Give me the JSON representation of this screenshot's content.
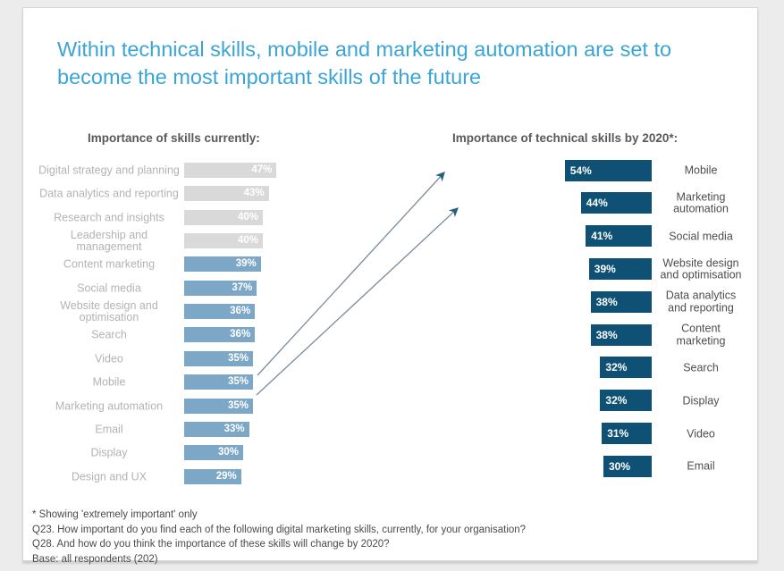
{
  "slide": {
    "title": "Within technical skills, mobile and marketing automation are set to become the most important skills of the future"
  },
  "charts": {
    "current": {
      "heading": "Importance of skills currently:",
      "rows": [
        {
          "label": "Digital strategy and planning",
          "value": 47,
          "variant": "gray"
        },
        {
          "label": "Data analytics and reporting",
          "value": 43,
          "variant": "gray"
        },
        {
          "label": "Research and insights",
          "value": 40,
          "variant": "gray"
        },
        {
          "label": "Leadership and management",
          "value": 40,
          "variant": "gray"
        },
        {
          "label": "Content marketing",
          "value": 39,
          "variant": "blue"
        },
        {
          "label": "Social media",
          "value": 37,
          "variant": "blue"
        },
        {
          "label": "Website design and optimisation",
          "value": 36,
          "variant": "blue"
        },
        {
          "label": "Search",
          "value": 36,
          "variant": "blue"
        },
        {
          "label": "Video",
          "value": 35,
          "variant": "blue"
        },
        {
          "label": "Mobile",
          "value": 35,
          "variant": "blue"
        },
        {
          "label": "Marketing automation",
          "value": 35,
          "variant": "blue"
        },
        {
          "label": "Email",
          "value": 33,
          "variant": "blue"
        },
        {
          "label": "Display",
          "value": 30,
          "variant": "blue"
        },
        {
          "label": "Design and UX",
          "value": 29,
          "variant": "blue"
        }
      ]
    },
    "future": {
      "heading": "Importance of technical skills by 2020*:",
      "rows": [
        {
          "label": "Mobile",
          "value": 54
        },
        {
          "label": "Marketing automation",
          "value": 44
        },
        {
          "label": "Social media",
          "value": 41
        },
        {
          "label": "Website design and optimisation",
          "value": 39
        },
        {
          "label": "Data analytics and reporting",
          "value": 38
        },
        {
          "label": "Content marketing",
          "value": 38
        },
        {
          "label": "Search",
          "value": 32
        },
        {
          "label": "Display",
          "value": 32
        },
        {
          "label": "Video",
          "value": 31
        },
        {
          "label": "Email",
          "value": 30
        }
      ]
    }
  },
  "footnotes": [
    "* Showing 'extremely important' only",
    "Q23. How important do you find each of the following digital marketing skills, currently, for your organisation?",
    "Q28. And how do you think the importance of these skills will change by 2020?",
    "Base: all respondents (202)"
  ],
  "colors": {
    "title_blue": "#3aa5d5",
    "bar_gray": "#d9d9d9",
    "bar_steel_blue": "#7da7c6",
    "bar_dark_blue": "#0e5174",
    "value_text": "#ffffff",
    "label_light_gray": "#b3b3b3",
    "label_dark_gray": "#4d4d4d",
    "heading_gray": "#595959",
    "arrow": "#7b8c9b",
    "background": "#ececec"
  },
  "chart_data": [
    {
      "type": "bar",
      "orientation": "horizontal",
      "title": "Importance of skills currently:",
      "categories": [
        "Digital strategy and planning",
        "Data analytics and reporting",
        "Research and insights",
        "Leadership and management",
        "Content marketing",
        "Social media",
        "Website design and optimisation",
        "Search",
        "Video",
        "Mobile",
        "Marketing automation",
        "Email",
        "Display",
        "Design and UX"
      ],
      "values": [
        47,
        43,
        40,
        40,
        39,
        37,
        36,
        36,
        35,
        35,
        35,
        33,
        30,
        29
      ],
      "unit": "%",
      "xlabel": "",
      "ylabel": "",
      "xlim": [
        0,
        60
      ],
      "grid": false,
      "legend": false,
      "notes": "Top four bars (non-technical skills) are gray; remaining bars steel blue; value labels in white inside right end of bars"
    },
    {
      "type": "bar",
      "orientation": "horizontal",
      "title": "Importance of technical skills by 2020*:",
      "categories": [
        "Mobile",
        "Marketing automation",
        "Social media",
        "Website design and optimisation",
        "Data analytics and reporting",
        "Content marketing",
        "Search",
        "Display",
        "Video",
        "Email"
      ],
      "values": [
        54,
        44,
        41,
        39,
        38,
        38,
        32,
        32,
        31,
        30
      ],
      "unit": "%",
      "xlabel": "",
      "ylabel": "",
      "xlim": [
        0,
        60
      ],
      "grid": false,
      "legend": false,
      "notes": "Bars right-aligned growing leftward, dark blue, value labels in white inside left end, category labels to the right; two arrows point from 'Mobile' and 'Marketing automation' bars in the current chart toward the top of this chart"
    }
  ]
}
